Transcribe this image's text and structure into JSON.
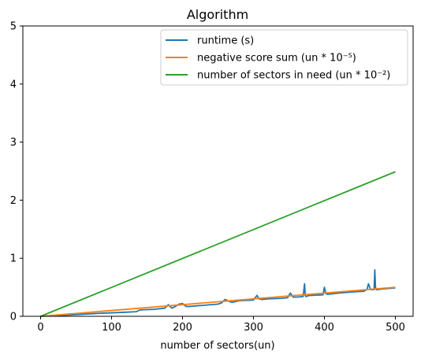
{
  "chart_data": {
    "type": "line",
    "title": "Algorithm",
    "xlabel": "number of sectors(un)",
    "ylabel": "",
    "xlim": [
      -25,
      525
    ],
    "ylim": [
      0,
      5
    ],
    "xticks": [
      0,
      100,
      200,
      300,
      400,
      500
    ],
    "xtick_labels": [
      "0",
      "100",
      "200",
      "300",
      "400",
      "500"
    ],
    "yticks": [
      0,
      1,
      2,
      3,
      4,
      5
    ],
    "ytick_labels": [
      "0",
      "1",
      "2",
      "3",
      "4",
      "5"
    ],
    "grid": false,
    "legend_position": "top-right",
    "series": [
      {
        "name": "runtime (s)",
        "color": "#1f77b4",
        "x": [
          0,
          20,
          50,
          80,
          100,
          120,
          135,
          140,
          160,
          175,
          180,
          185,
          190,
          195,
          200,
          205,
          210,
          230,
          250,
          255,
          260,
          265,
          270,
          280,
          300,
          305,
          308,
          312,
          320,
          340,
          348,
          352,
          356,
          360,
          370,
          372,
          373,
          374,
          376,
          380,
          398,
          400,
          402,
          405,
          420,
          440,
          455,
          460,
          462,
          465,
          470,
          471,
          472,
          473,
          475,
          480,
          500
        ],
        "y": [
          0.0,
          0.01,
          0.03,
          0.05,
          0.06,
          0.07,
          0.08,
          0.11,
          0.12,
          0.14,
          0.2,
          0.14,
          0.17,
          0.21,
          0.22,
          0.17,
          0.17,
          0.19,
          0.21,
          0.23,
          0.29,
          0.26,
          0.24,
          0.27,
          0.28,
          0.36,
          0.3,
          0.29,
          0.3,
          0.31,
          0.32,
          0.4,
          0.33,
          0.33,
          0.34,
          0.56,
          0.36,
          0.34,
          0.35,
          0.36,
          0.37,
          0.5,
          0.39,
          0.38,
          0.4,
          0.42,
          0.43,
          0.46,
          0.56,
          0.46,
          0.46,
          0.8,
          0.5,
          0.46,
          0.46,
          0.47,
          0.49
        ]
      },
      {
        "name": "negative score sum (un * 10⁻⁵)",
        "color": "#ff7f0e",
        "x": [
          0,
          500
        ],
        "y": [
          0.0,
          0.5
        ]
      },
      {
        "name": "number of sectors in need (un * 10⁻²)",
        "color": "#2ca02c",
        "x": [
          0,
          500
        ],
        "y": [
          0.0,
          2.49
        ]
      }
    ]
  }
}
